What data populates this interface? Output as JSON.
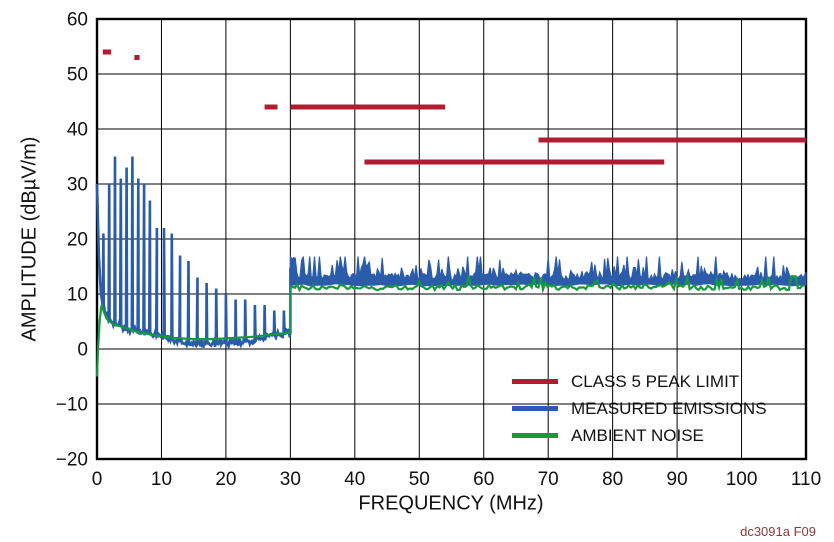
{
  "caption": "dc3091a F09",
  "chart_data": {
    "type": "line",
    "title": "",
    "xlabel": "FREQUENCY (MHz)",
    "ylabel": "AMPLITUDE (dBµV/m)",
    "xlim": [
      0,
      110
    ],
    "ylim": [
      -20,
      60
    ],
    "xticks": [
      0,
      10,
      20,
      30,
      40,
      50,
      60,
      70,
      80,
      90,
      100,
      110
    ],
    "yticks": [
      -20,
      -10,
      0,
      10,
      20,
      30,
      40,
      50,
      60
    ],
    "grid": true,
    "legend_position": "lower right",
    "legend": [
      {
        "label": "CLASS 5 PEAK LIMIT",
        "color": "#b01c30"
      },
      {
        "label": "MEASURED EMISSIONS",
        "color": "#2a5caa"
      },
      {
        "label": "AMBIENT NOISE",
        "color": "#15993f"
      }
    ],
    "series": [
      {
        "name": "CLASS 5 PEAK LIMIT",
        "type": "segments",
        "color": "#b01c30",
        "segments": [
          {
            "x1": 0.9,
            "x2": 2.2,
            "y": 54
          },
          {
            "x1": 5.8,
            "x2": 6.6,
            "y": 53
          },
          {
            "x1": 26.0,
            "x2": 28.0,
            "y": 44
          },
          {
            "x1": 30.0,
            "x2": 54.0,
            "y": 44
          },
          {
            "x1": 41.5,
            "x2": 88.0,
            "y": 34
          },
          {
            "x1": 68.5,
            "x2": 110.0,
            "y": 38
          }
        ]
      },
      {
        "name": "MEASURED EMISSIONS",
        "type": "emissions",
        "color": "#2a5caa",
        "low_band": {
          "x_range": [
            0,
            30
          ],
          "baseline": [
            [
              0,
              30
            ],
            [
              0.25,
              18
            ],
            [
              0.6,
              10
            ],
            [
              1.2,
              6.5
            ],
            [
              2,
              5
            ],
            [
              3,
              4.5
            ],
            [
              5,
              3.5
            ],
            [
              8,
              3
            ],
            [
              11,
              2
            ],
            [
              14,
              1.2
            ],
            [
              18,
              1
            ],
            [
              22,
              1.2
            ],
            [
              25,
              1.8
            ],
            [
              28,
              2.5
            ],
            [
              30,
              3
            ]
          ],
          "spikes": [
            [
              1.0,
              21
            ],
            [
              1.9,
              30
            ],
            [
              2.8,
              35
            ],
            [
              3.7,
              31
            ],
            [
              4.6,
              33
            ],
            [
              5.5,
              35
            ],
            [
              6.4,
              31
            ],
            [
              7.3,
              30
            ],
            [
              8.2,
              27
            ],
            [
              9.3,
              22
            ],
            [
              10.4,
              22
            ],
            [
              11.6,
              21
            ],
            [
              12.9,
              17
            ],
            [
              14.2,
              16
            ],
            [
              15.6,
              13
            ],
            [
              17.0,
              12
            ],
            [
              18.5,
              11
            ],
            [
              20.0,
              10
            ],
            [
              21.5,
              9
            ],
            [
              23.0,
              9
            ],
            [
              24.5,
              8
            ],
            [
              26.0,
              8
            ],
            [
              27.5,
              7
            ],
            [
              29.0,
              7
            ]
          ]
        },
        "high_band": {
          "x_range": [
            30,
            110
          ],
          "floor": 11.5,
          "typical_top": 13.7,
          "peak_top": 16.8,
          "noise_seed": 1234
        }
      },
      {
        "name": "AMBIENT NOISE",
        "type": "line",
        "color": "#15993f",
        "points_low": [
          [
            0,
            -5
          ],
          [
            0.15,
            0
          ],
          [
            0.4,
            5
          ],
          [
            0.7,
            8
          ],
          [
            1.0,
            7
          ],
          [
            1.5,
            5.5
          ],
          [
            2.5,
            4.5
          ],
          [
            4,
            4
          ],
          [
            6,
            3.2
          ],
          [
            9,
            2.5
          ],
          [
            12,
            2
          ],
          [
            15,
            1.8
          ],
          [
            18,
            1.8
          ],
          [
            21,
            2
          ],
          [
            24,
            2.2
          ],
          [
            27,
            2.6
          ],
          [
            30,
            3
          ]
        ],
        "high_band": {
          "x_range": [
            30,
            110
          ],
          "level": 11.15,
          "jitter": 0.9,
          "noise_seed": 77
        }
      }
    ]
  }
}
